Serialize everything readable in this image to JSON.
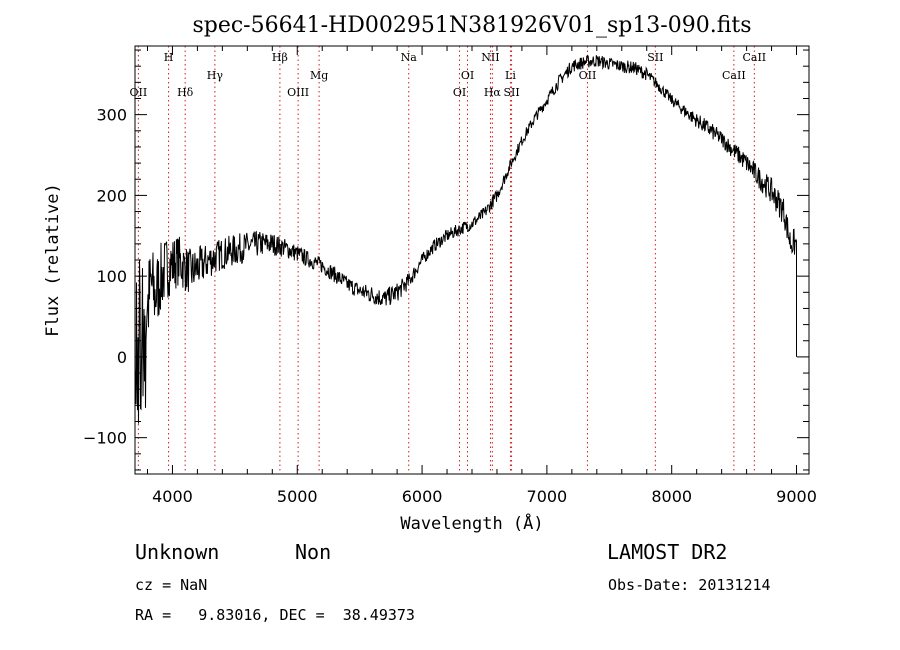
{
  "chart_data": {
    "type": "line",
    "title": "spec-56641-HD002951N381926V01_sp13-090.fits",
    "xlabel": "Wavelength (Å)",
    "ylabel": "Flux (relative)",
    "xlim": [
      3700,
      9100
    ],
    "ylim": [
      -145,
      385
    ],
    "xticks": [
      4000,
      5000,
      6000,
      7000,
      8000,
      9000
    ],
    "xtick_labels": [
      "4000",
      "5000",
      "6000",
      "7000",
      "8000",
      "9000"
    ],
    "yticks": [
      -100,
      0,
      100,
      200,
      300
    ],
    "ytick_labels": [
      "−100",
      "0",
      "100",
      "200",
      "300"
    ],
    "grid": false,
    "series": [
      {
        "color": "#000000",
        "x": [
          3700,
          3740,
          3760,
          3780,
          3800,
          3830,
          3860,
          3900,
          3950,
          4000,
          4050,
          4100,
          4150,
          4200,
          4300,
          4400,
          4500,
          4600,
          4700,
          4800,
          4900,
          5000,
          5100,
          5200,
          5300,
          5400,
          5500,
          5600,
          5700,
          5800,
          5900,
          6000,
          6100,
          6200,
          6300,
          6400,
          6500,
          6600,
          6700,
          6800,
          6900,
          7000,
          7100,
          7200,
          7300,
          7400,
          7500,
          7600,
          7700,
          7800,
          7900,
          8000,
          8100,
          8200,
          8300,
          8400,
          8500,
          8600,
          8700,
          8800,
          8900,
          8950,
          9000
        ],
        "y": [
          100,
          60,
          40,
          70,
          60,
          90,
          75,
          95,
          110,
          115,
          120,
          110,
          105,
          110,
          120,
          128,
          132,
          137,
          140,
          140,
          135,
          128,
          120,
          113,
          102,
          90,
          82,
          77,
          72,
          80,
          95,
          120,
          138,
          150,
          158,
          165,
          178,
          200,
          235,
          268,
          295,
          318,
          342,
          360,
          365,
          367,
          363,
          360,
          358,
          350,
          335,
          318,
          305,
          293,
          282,
          270,
          255,
          240,
          222,
          205,
          180,
          142,
          140
        ],
        "noise": [
          40,
          70,
          80,
          70,
          60,
          55,
          50,
          45,
          40,
          35,
          32,
          30,
          28,
          26,
          22,
          20,
          20,
          18,
          16,
          14,
          12,
          11,
          10,
          10,
          10,
          10,
          10,
          12,
          12,
          12,
          10,
          8,
          8,
          8,
          8,
          8,
          8,
          8,
          7,
          7,
          7,
          7,
          8,
          8,
          8,
          8,
          8,
          8,
          8,
          8,
          7,
          7,
          8,
          9,
          10,
          10,
          11,
          12,
          14,
          16,
          18,
          18,
          18
        ]
      }
    ],
    "spectral_lines": [
      {
        "label": "OII",
        "x": 3727,
        "row": 3
      },
      {
        "label": "H",
        "x": 3969,
        "row": 0
      },
      {
        "label": "Hδ",
        "x": 4102,
        "row": 3
      },
      {
        "label": "Hγ",
        "x": 4340,
        "row": 1
      },
      {
        "label": "Hβ",
        "x": 4861,
        "row": 0
      },
      {
        "label": "OIII",
        "x": 5007,
        "row": 3
      },
      {
        "label": "Mg",
        "x": 5175,
        "row": 1
      },
      {
        "label": "Na",
        "x": 5893,
        "row": 0
      },
      {
        "label": "OI",
        "x": 6300,
        "row": 3
      },
      {
        "label": "OI",
        "x": 6364,
        "row": 1
      },
      {
        "label": "NII",
        "x": 6548,
        "row": 0
      },
      {
        "label": "Hα",
        "x": 6563,
        "row": 3
      },
      {
        "label": "Li",
        "x": 6708,
        "row": 1
      },
      {
        "label": "SII",
        "x": 6717,
        "row": 3
      },
      {
        "label": "OII",
        "x": 7325,
        "row": 1
      },
      {
        "label": "SII",
        "x": 7869,
        "row": 0
      },
      {
        "label": "CaII",
        "x": 8498,
        "row": 1
      },
      {
        "label": "CaII",
        "x": 8662,
        "row": 0
      }
    ],
    "line_marker_color": "#d22020"
  },
  "info": {
    "object_class": "Unknown",
    "subclass": "Non",
    "survey": "LAMOST DR2",
    "redshift": "cz = NaN",
    "obs_date": "Obs-Date: 20131214",
    "coords": "RA =   9.83016, DEC =  38.49373"
  }
}
